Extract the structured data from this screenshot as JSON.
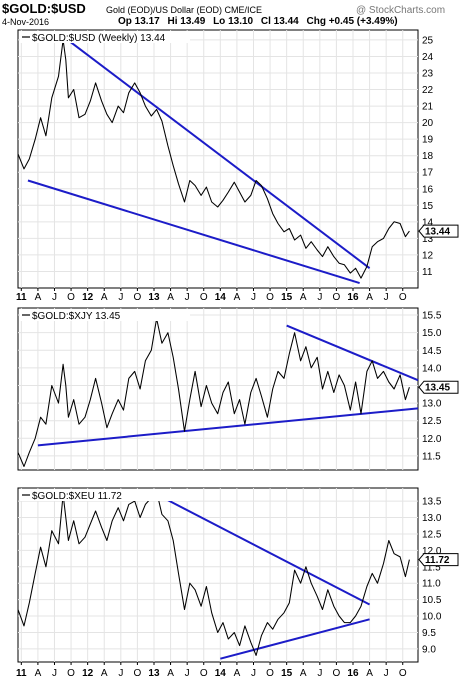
{
  "header": {
    "symbol": "$GOLD:$USD",
    "description": "Gold (EOD)/US Dollar (EOD)  CME/ICE",
    "date": "4-Nov-2016",
    "open": "Op 13.17",
    "high": "Hi 13.49",
    "low": "Lo 13.10",
    "close": "Cl 13.44",
    "change": "Chg +0.45 (+3.49%)",
    "credit": "@ StockCharts.com"
  },
  "chart_data": [
    {
      "type": "line",
      "title": "$GOLD:$USD (Weekly) 13.44",
      "last_value_label": "13.44",
      "ylim": [
        10,
        25.6
      ],
      "yticks": [
        "11",
        "12",
        "13",
        "14",
        "15",
        "16",
        "17",
        "18",
        "19",
        "20",
        "21",
        "22",
        "23",
        "24",
        "25"
      ],
      "grid": true,
      "x": [
        2010.95,
        2011.04,
        2011.12,
        2011.21,
        2011.29,
        2011.37,
        2011.46,
        2011.56,
        2011.63,
        2011.67,
        2011.71,
        2011.79,
        2011.87,
        2011.96,
        2012.04,
        2012.12,
        2012.21,
        2012.29,
        2012.37,
        2012.46,
        2012.54,
        2012.62,
        2012.71,
        2012.79,
        2012.87,
        2012.96,
        2013.04,
        2013.12,
        2013.21,
        2013.29,
        2013.37,
        2013.46,
        2013.54,
        2013.62,
        2013.71,
        2013.79,
        2013.87,
        2013.96,
        2014.04,
        2014.12,
        2014.21,
        2014.29,
        2014.37,
        2014.46,
        2014.54,
        2014.62,
        2014.71,
        2014.79,
        2014.87,
        2014.96,
        2015.04,
        2015.12,
        2015.21,
        2015.29,
        2015.37,
        2015.46,
        2015.54,
        2015.62,
        2015.71,
        2015.79,
        2015.87,
        2015.96,
        2016.04,
        2016.12,
        2016.21,
        2016.29,
        2016.37,
        2016.46,
        2016.54,
        2016.62,
        2016.71,
        2016.79,
        2016.85
      ],
      "values": [
        18.1,
        17.2,
        17.8,
        19.0,
        20.3,
        19.2,
        21.5,
        22.8,
        25.0,
        23.8,
        21.5,
        22.0,
        20.3,
        20.5,
        21.3,
        22.4,
        21.3,
        20.5,
        20.0,
        21.0,
        20.6,
        21.8,
        22.4,
        21.8,
        21.0,
        20.4,
        20.8,
        20.1,
        18.6,
        17.4,
        16.3,
        15.2,
        16.5,
        16.2,
        15.6,
        16.1,
        15.2,
        14.9,
        15.3,
        15.8,
        16.4,
        15.8,
        15.2,
        15.6,
        16.5,
        16.2,
        15.4,
        14.5,
        13.9,
        13.4,
        13.6,
        12.9,
        13.2,
        12.4,
        12.8,
        12.3,
        11.9,
        12.5,
        11.9,
        11.5,
        11.4,
        10.9,
        11.2,
        10.6,
        11.3,
        12.5,
        12.8,
        13.0,
        13.6,
        14.0,
        13.9,
        13.1,
        13.44
      ],
      "trendlines": [
        {
          "x": [
            2011.7,
            2016.25
          ],
          "y": [
            25.0,
            11.2
          ]
        },
        {
          "x": [
            2011.1,
            2016.1
          ],
          "y": [
            16.5,
            10.3
          ]
        }
      ]
    },
    {
      "type": "line",
      "title": "$GOLD:$XJY 13.45",
      "last_value_label": "13.45",
      "ylim": [
        11.1,
        15.7
      ],
      "yticks": [
        "11.5",
        "12.0",
        "12.5",
        "13.0",
        "13.5",
        "14.0",
        "14.5",
        "15.0",
        "15.5"
      ],
      "grid": true,
      "x": [
        2010.95,
        2011.04,
        2011.12,
        2011.21,
        2011.29,
        2011.37,
        2011.46,
        2011.56,
        2011.63,
        2011.67,
        2011.71,
        2011.79,
        2011.87,
        2011.96,
        2012.04,
        2012.12,
        2012.21,
        2012.29,
        2012.37,
        2012.46,
        2012.54,
        2012.62,
        2012.71,
        2012.79,
        2012.87,
        2012.96,
        2013.04,
        2013.12,
        2013.21,
        2013.29,
        2013.37,
        2013.46,
        2013.54,
        2013.62,
        2013.71,
        2013.79,
        2013.87,
        2013.96,
        2014.04,
        2014.12,
        2014.21,
        2014.29,
        2014.37,
        2014.46,
        2014.54,
        2014.62,
        2014.71,
        2014.79,
        2014.87,
        2014.96,
        2015.04,
        2015.12,
        2015.21,
        2015.29,
        2015.37,
        2015.46,
        2015.54,
        2015.62,
        2015.71,
        2015.79,
        2015.87,
        2015.96,
        2016.04,
        2016.12,
        2016.21,
        2016.29,
        2016.37,
        2016.46,
        2016.54,
        2016.62,
        2016.71,
        2016.79,
        2016.85
      ],
      "values": [
        11.6,
        11.2,
        11.6,
        12.0,
        12.6,
        12.4,
        13.5,
        13.0,
        14.1,
        13.5,
        12.6,
        13.1,
        12.4,
        12.6,
        13.1,
        13.7,
        13.0,
        12.3,
        12.7,
        13.1,
        12.8,
        13.7,
        13.9,
        13.4,
        14.2,
        14.5,
        15.4,
        14.7,
        15.0,
        14.3,
        13.4,
        12.2,
        13.1,
        13.9,
        12.9,
        13.5,
        13.0,
        12.7,
        13.3,
        13.6,
        12.7,
        13.1,
        12.4,
        13.3,
        13.7,
        13.2,
        12.6,
        13.4,
        13.9,
        13.7,
        14.4,
        15.0,
        14.2,
        14.6,
        14.0,
        14.3,
        13.4,
        13.9,
        13.3,
        13.8,
        13.5,
        12.8,
        13.6,
        12.7,
        13.9,
        14.2,
        13.7,
        13.9,
        13.6,
        13.4,
        13.8,
        13.1,
        13.45
      ],
      "trendlines": [
        {
          "x": [
            2011.25,
            2016.98
          ],
          "y": [
            11.8,
            12.85
          ]
        },
        {
          "x": [
            2015.0,
            2016.98
          ],
          "y": [
            15.2,
            13.65
          ]
        }
      ]
    },
    {
      "type": "line",
      "title": "$GOLD:$XEU 11.72",
      "last_value_label": "11.72",
      "ylim": [
        8.6,
        13.9
      ],
      "yticks": [
        "9.0",
        "9.5",
        "10.0",
        "10.5",
        "11.0",
        "11.5",
        "12.0",
        "12.5",
        "13.0",
        "13.5"
      ],
      "grid": true,
      "x": [
        2010.95,
        2011.04,
        2011.12,
        2011.21,
        2011.29,
        2011.37,
        2011.46,
        2011.56,
        2011.63,
        2011.67,
        2011.71,
        2011.79,
        2011.87,
        2011.96,
        2012.04,
        2012.12,
        2012.21,
        2012.29,
        2012.37,
        2012.46,
        2012.54,
        2012.62,
        2012.71,
        2012.79,
        2012.87,
        2012.96,
        2013.04,
        2013.12,
        2013.21,
        2013.29,
        2013.37,
        2013.46,
        2013.54,
        2013.62,
        2013.71,
        2013.79,
        2013.87,
        2013.96,
        2014.04,
        2014.12,
        2014.21,
        2014.29,
        2014.37,
        2014.46,
        2014.54,
        2014.62,
        2014.71,
        2014.79,
        2014.87,
        2014.96,
        2015.04,
        2015.12,
        2015.21,
        2015.29,
        2015.37,
        2015.46,
        2015.54,
        2015.62,
        2015.71,
        2015.79,
        2015.87,
        2015.96,
        2016.04,
        2016.12,
        2016.21,
        2016.29,
        2016.37,
        2016.46,
        2016.54,
        2016.62,
        2016.71,
        2016.79,
        2016.85
      ],
      "values": [
        10.2,
        9.7,
        10.4,
        11.3,
        12.1,
        11.5,
        12.6,
        12.2,
        13.7,
        13.0,
        12.3,
        12.9,
        12.2,
        12.4,
        12.8,
        13.2,
        12.7,
        12.3,
        12.9,
        13.3,
        12.9,
        13.4,
        13.5,
        13.0,
        13.4,
        13.6,
        13.8,
        13.1,
        12.9,
        12.3,
        11.3,
        10.2,
        11.0,
        10.8,
        10.3,
        10.9,
        10.1,
        9.5,
        9.8,
        9.3,
        9.5,
        9.1,
        9.7,
        9.2,
        8.8,
        9.4,
        9.8,
        9.6,
        9.9,
        10.1,
        10.4,
        11.4,
        11.0,
        11.5,
        11.0,
        10.6,
        10.2,
        10.8,
        10.3,
        10.0,
        9.8,
        9.8,
        10.0,
        10.3,
        10.9,
        11.3,
        11.0,
        11.6,
        12.3,
        11.9,
        11.8,
        11.2,
        11.72
      ],
      "trendlines": [
        {
          "x": [
            2012.95,
            2016.25
          ],
          "y": [
            13.8,
            10.35
          ]
        },
        {
          "x": [
            2014.0,
            2016.25
          ],
          "y": [
            8.7,
            9.9
          ]
        }
      ]
    }
  ],
  "x_axis": {
    "ticks": [
      {
        "x": 2011.0,
        "label": "11",
        "major": true
      },
      {
        "x": 2011.25,
        "label": "A",
        "major": false
      },
      {
        "x": 2011.5,
        "label": "J",
        "major": false
      },
      {
        "x": 2011.75,
        "label": "O",
        "major": false
      },
      {
        "x": 2012.0,
        "label": "12",
        "major": true
      },
      {
        "x": 2012.25,
        "label": "A",
        "major": false
      },
      {
        "x": 2012.5,
        "label": "J",
        "major": false
      },
      {
        "x": 2012.75,
        "label": "O",
        "major": false
      },
      {
        "x": 2013.0,
        "label": "13",
        "major": true
      },
      {
        "x": 2013.25,
        "label": "A",
        "major": false
      },
      {
        "x": 2013.5,
        "label": "J",
        "major": false
      },
      {
        "x": 2013.75,
        "label": "O",
        "major": false
      },
      {
        "x": 2014.0,
        "label": "14",
        "major": true
      },
      {
        "x": 2014.25,
        "label": "A",
        "major": false
      },
      {
        "x": 2014.5,
        "label": "J",
        "major": false
      },
      {
        "x": 2014.75,
        "label": "O",
        "major": false
      },
      {
        "x": 2015.0,
        "label": "15",
        "major": true
      },
      {
        "x": 2015.25,
        "label": "A",
        "major": false
      },
      {
        "x": 2015.5,
        "label": "J",
        "major": false
      },
      {
        "x": 2015.75,
        "label": "O",
        "major": false
      },
      {
        "x": 2016.0,
        "label": "16",
        "major": true
      },
      {
        "x": 2016.25,
        "label": "A",
        "major": false
      },
      {
        "x": 2016.5,
        "label": "J",
        "major": false
      },
      {
        "x": 2016.75,
        "label": "O",
        "major": false
      }
    ]
  },
  "colors": {
    "series": "#000000",
    "trendline": "#1c1cc8",
    "grid": "#e4e4e4"
  }
}
